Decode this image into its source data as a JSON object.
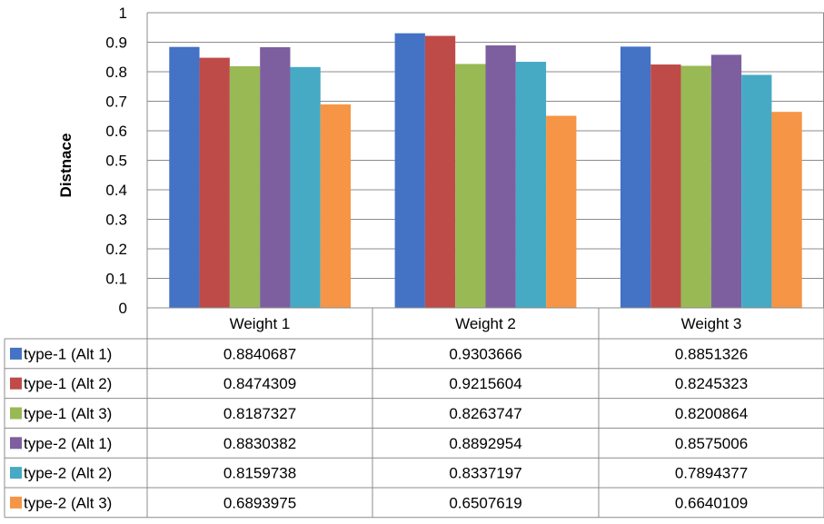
{
  "chart_data": {
    "type": "bar",
    "title": "",
    "xlabel": "",
    "ylabel": "Distnace",
    "ylim": [
      0,
      1
    ],
    "yticks": [
      "0",
      "0.1",
      "0.2",
      "0.3",
      "0.4",
      "0.5",
      "0.6",
      "0.7",
      "0.8",
      "0.9",
      "1"
    ],
    "grid": true,
    "legend": "data-table",
    "categories": [
      "Weight 1",
      "Weight 2",
      "Weight 3"
    ],
    "series": [
      {
        "name": "type-1 (Alt 1)",
        "color": "#4472C4",
        "values": [
          0.8840687,
          0.9303666,
          0.8851326
        ],
        "labels": [
          "0.8840687",
          "0.9303666",
          "0.8851326"
        ]
      },
      {
        "name": "type-1 (Alt 2)",
        "color": "#BE4B48",
        "values": [
          0.8474309,
          0.9215604,
          0.8245323
        ],
        "labels": [
          "0.8474309",
          "0.9215604",
          "0.8245323"
        ]
      },
      {
        "name": "type-1 (Alt 3)",
        "color": "#98B954",
        "values": [
          0.8187327,
          0.8263747,
          0.8200864
        ],
        "labels": [
          "0.8187327",
          "0.8263747",
          "0.8200864"
        ]
      },
      {
        "name": "type-2 (Alt 1)",
        "color": "#7D5FA0",
        "values": [
          0.8830382,
          0.8892954,
          0.8575006
        ],
        "labels": [
          "0.8830382",
          "0.8892954",
          "0.8575006"
        ]
      },
      {
        "name": "type-2 (Alt 2)",
        "color": "#46AAC5",
        "values": [
          0.8159738,
          0.8337197,
          0.7894377
        ],
        "labels": [
          "0.8159738",
          "0.8337197",
          "0.7894377"
        ]
      },
      {
        "name": "type-2 (Alt 3)",
        "color": "#F69545",
        "values": [
          0.6893975,
          0.6507619,
          0.6640109
        ],
        "labels": [
          "0.6893975",
          "0.6507619",
          "0.6640109"
        ]
      }
    ]
  },
  "colors": {
    "grid": "#8C8C8C",
    "table_border": "#8C8C8C"
  }
}
